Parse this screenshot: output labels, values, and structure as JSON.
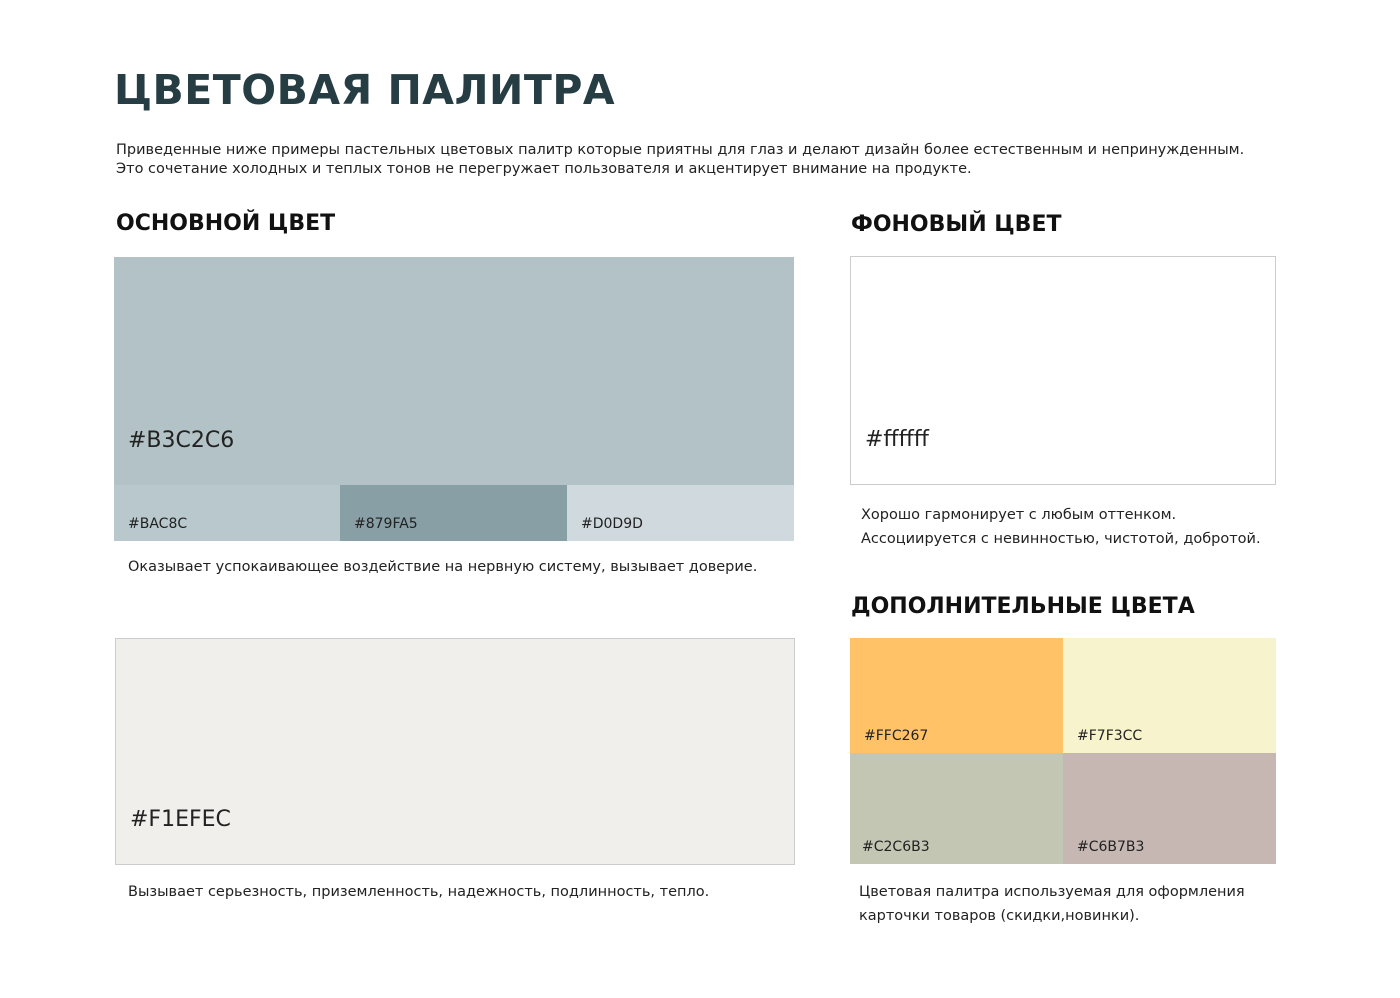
{
  "header": {
    "title": "ЦВЕТОВАЯ ПАЛИТРА",
    "intro": [
      "Приведенные ниже примеры пастельных цветовых палитр которые приятны для глаз и делают дизайн более естественным и непринужденным.",
      "Это сочетание холодных и теплых тонов не перегружает пользователя и акцентирует внимание на продукте."
    ]
  },
  "primary": {
    "heading": "ОСНОВНОЙ ЦВЕТ",
    "main": "#B3C2C6",
    "shades": [
      "#BAC8C",
      "#879FA5",
      "#D0D9D"
    ],
    "description": "Оказывает успокаивающее воздействие на нервную систему, вызывает доверие."
  },
  "secondary": {
    "main": "#F1EFEC",
    "description": "Вызывает серьезность, приземленность, надежность, подлинность, тепло."
  },
  "background": {
    "heading": "ФОНОВЫЙ ЦВЕТ",
    "main": "#ffffff",
    "description": [
      "Хорошо гармонирует с любым оттенком.",
      "Ассоциируется с невинностью, чистотой, добротой."
    ]
  },
  "additional": {
    "heading": "ДОПОЛНИТЕЛЬНЫЕ ЦВЕТА",
    "colors": [
      "#FFC267",
      "#F7F3CC",
      "#C2C6B3",
      "#C6B7B3"
    ],
    "description": [
      "Цветовая палитра используемая для оформления",
      "карточки товаров (скидки,новинки)."
    ]
  }
}
